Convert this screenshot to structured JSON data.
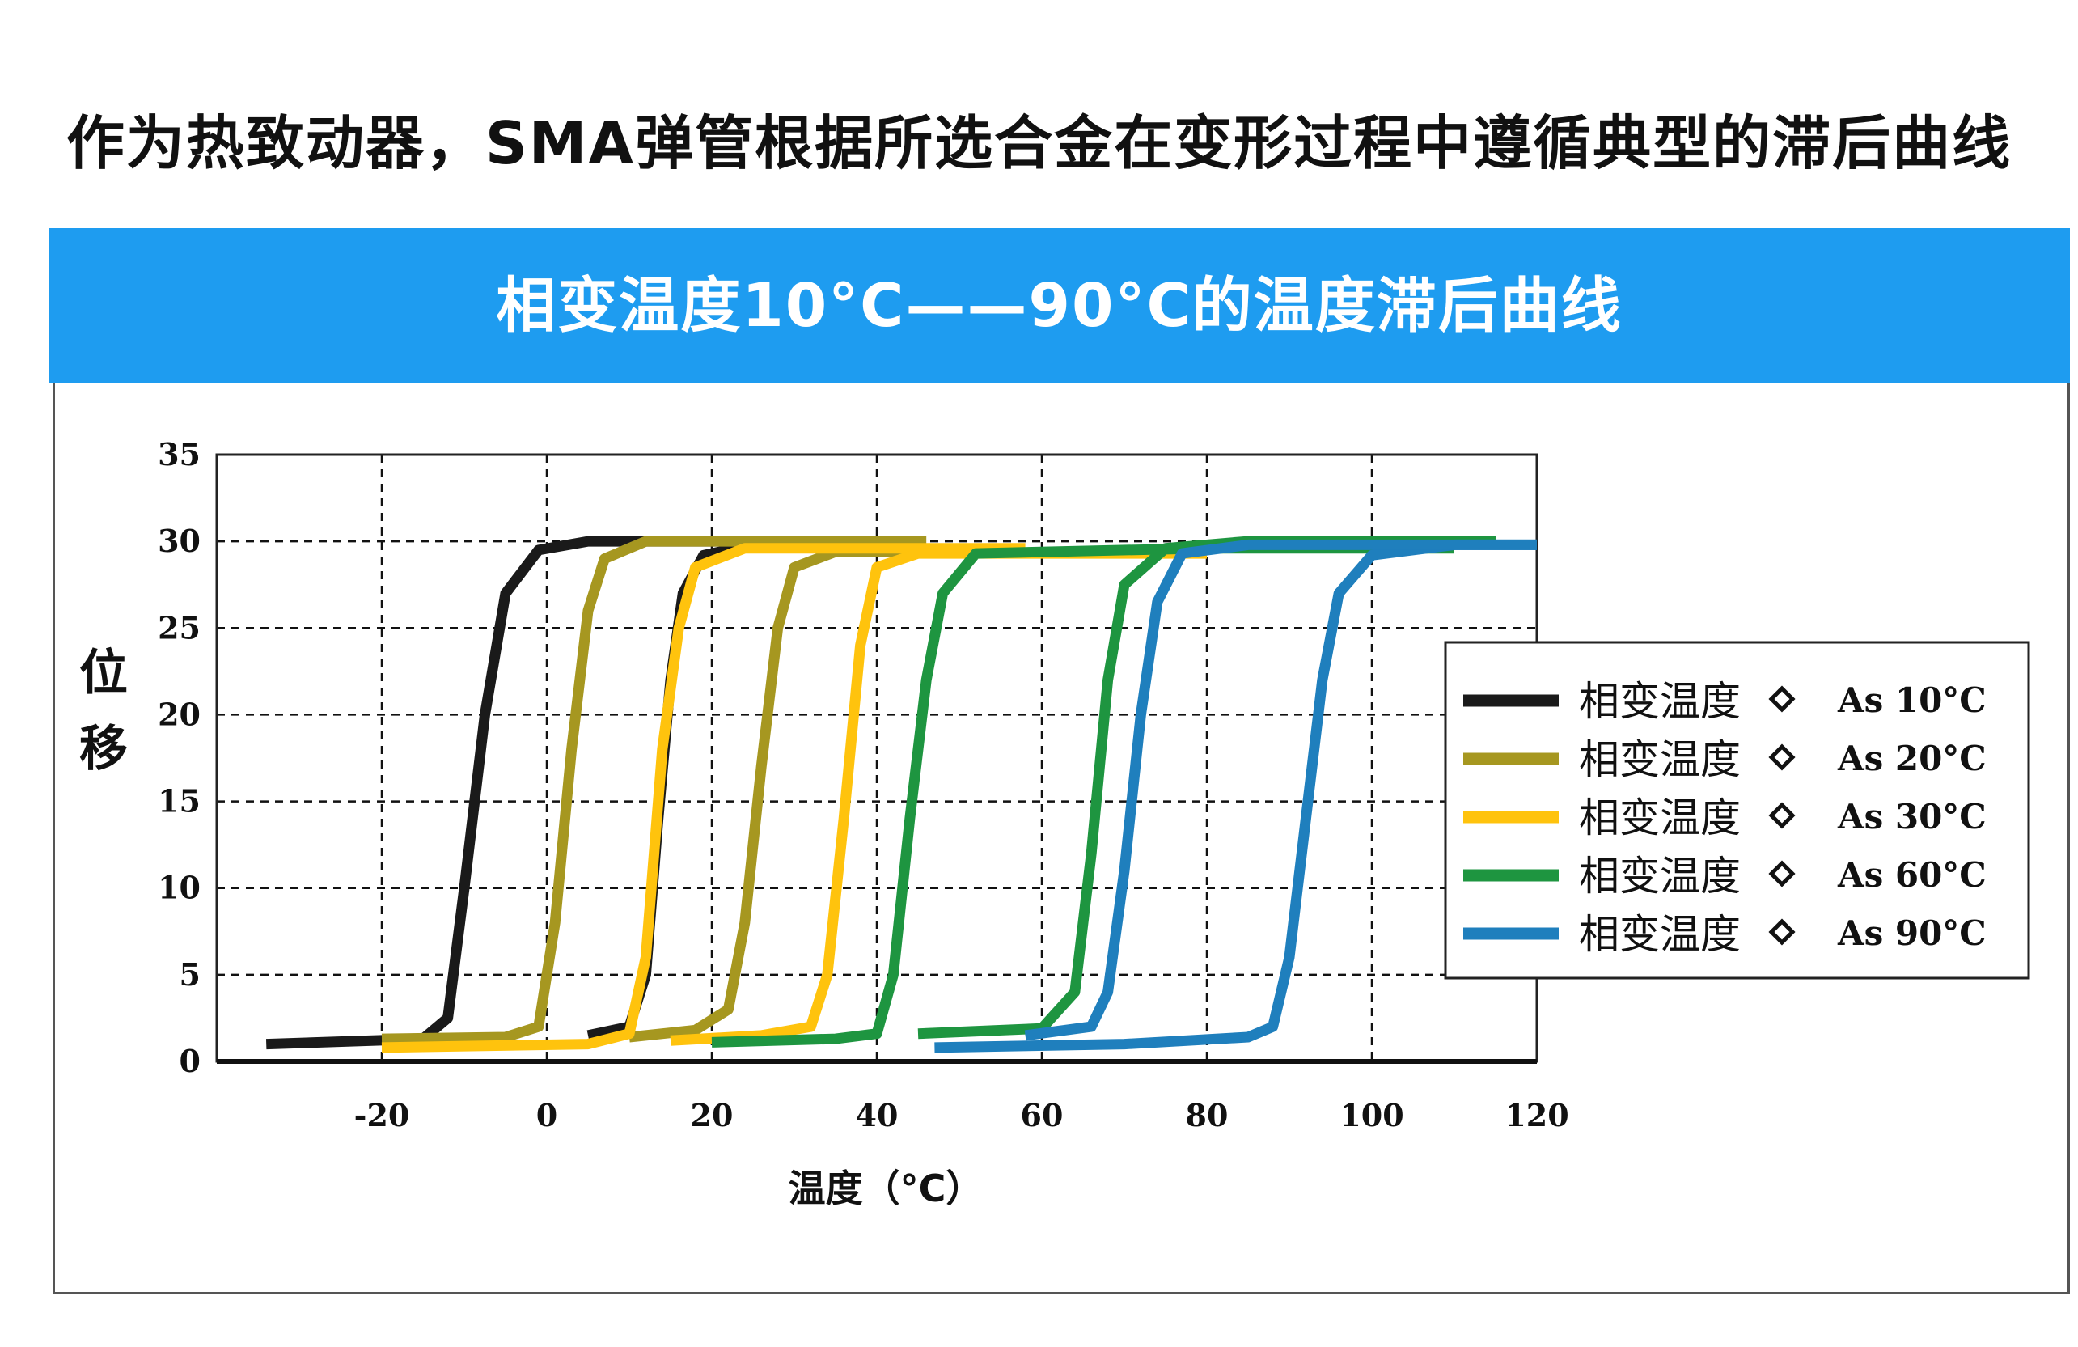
{
  "page": {
    "heading": "作为热致动器，SMA弹管根据所选合金在变形过程中遵循典型的滞后曲线",
    "banner_title": "相变温度10°C——90°C的温度滞后曲线",
    "banner_color": "#1e9cf0"
  },
  "chart_data": {
    "type": "line",
    "title": "相变温度10°C——90°C的温度滞后曲线",
    "xlabel": "温度（°C）",
    "ylabel": "位移",
    "xlim": [
      -40,
      120
    ],
    "ylim": [
      0,
      35
    ],
    "x_ticks": [
      "-20",
      "0",
      "20",
      "40",
      "60",
      "80",
      "100",
      "120"
    ],
    "x_tick_values": [
      -20,
      0,
      20,
      40,
      60,
      80,
      100,
      120
    ],
    "y_ticks": [
      "0",
      "5",
      "10",
      "15",
      "20",
      "25",
      "30",
      "35"
    ],
    "y_tick_values": [
      0,
      5,
      10,
      15,
      20,
      25,
      30,
      35
    ],
    "grid": true,
    "legend_position": "right",
    "series": [
      {
        "name": "相变温度 ◆ As 10°C",
        "legend_label": "相变温度",
        "legend_as": "As 10°C",
        "color": "#1a1a1a",
        "heating": [
          [
            -34,
            1
          ],
          [
            -15,
            1.3
          ],
          [
            -12,
            2.5
          ],
          [
            -10,
            10
          ],
          [
            -7.5,
            20
          ],
          [
            -5,
            27
          ],
          [
            -1,
            29.5
          ],
          [
            5,
            30
          ],
          [
            20,
            30
          ],
          [
            36,
            30
          ]
        ],
        "cooling": [
          [
            40,
            29.8
          ],
          [
            25,
            29.8
          ],
          [
            19,
            29.2
          ],
          [
            16.5,
            27
          ],
          [
            15,
            22
          ],
          [
            13.5,
            14
          ],
          [
            12,
            5
          ],
          [
            10,
            2
          ],
          [
            5,
            1.5
          ]
        ]
      },
      {
        "name": "相变温度 ◆ As 20°C",
        "legend_label": "相变温度",
        "legend_as": "As 20°C",
        "color": "#a69720",
        "heating": [
          [
            -20,
            1.3
          ],
          [
            -5,
            1.4
          ],
          [
            -1,
            2
          ],
          [
            1,
            8
          ],
          [
            3,
            18
          ],
          [
            5,
            26
          ],
          [
            7,
            29
          ],
          [
            12,
            30
          ],
          [
            30,
            30
          ],
          [
            46,
            30
          ]
        ],
        "cooling": [
          [
            50,
            29.4
          ],
          [
            35,
            29.4
          ],
          [
            30,
            28.5
          ],
          [
            28,
            25
          ],
          [
            26,
            17
          ],
          [
            24,
            8
          ],
          [
            22,
            3
          ],
          [
            18,
            1.8
          ],
          [
            10,
            1.4
          ]
        ]
      },
      {
        "name": "相变温度 ◆ As 30°C",
        "legend_label": "相变温度",
        "legend_as": "As 30°C",
        "color": "#ffc30d",
        "heating": [
          [
            -20,
            0.8
          ],
          [
            5,
            1
          ],
          [
            10,
            1.6
          ],
          [
            12,
            6
          ],
          [
            14,
            18
          ],
          [
            16,
            25
          ],
          [
            18,
            28.5
          ],
          [
            24,
            29.6
          ],
          [
            40,
            29.6
          ],
          [
            58,
            29.6
          ]
        ],
        "cooling": [
          [
            80,
            29.3
          ],
          [
            45,
            29.3
          ],
          [
            40,
            28.5
          ],
          [
            38,
            24
          ],
          [
            36,
            14
          ],
          [
            34,
            5
          ],
          [
            32,
            2
          ],
          [
            26,
            1.5
          ],
          [
            15,
            1.2
          ]
        ]
      },
      {
        "name": "相变温度 ◆ As 60°C",
        "legend_label": "相变温度",
        "legend_as": "As 60°C",
        "color": "#1e9540",
        "heating": [
          [
            20,
            1.1
          ],
          [
            35,
            1.3
          ],
          [
            40,
            1.6
          ],
          [
            42,
            5
          ],
          [
            44,
            14
          ],
          [
            46,
            22
          ],
          [
            48,
            27
          ],
          [
            52,
            29.3
          ],
          [
            80,
            29.6
          ],
          [
            110,
            29.6
          ]
        ],
        "cooling": [
          [
            115,
            30
          ],
          [
            85,
            30
          ],
          [
            75,
            29.6
          ],
          [
            70,
            27.5
          ],
          [
            68,
            22
          ],
          [
            66,
            12
          ],
          [
            64,
            4
          ],
          [
            60,
            1.9
          ],
          [
            45,
            1.6
          ]
        ]
      },
      {
        "name": "相变温度 ◆ As 90°C",
        "legend_label": "相变温度",
        "legend_as": "As 90°C",
        "color": "#1f7fbd",
        "heating": [
          [
            47,
            0.8
          ],
          [
            70,
            1
          ],
          [
            85,
            1.4
          ],
          [
            88,
            2
          ],
          [
            90,
            6
          ],
          [
            92,
            14
          ],
          [
            94,
            22
          ],
          [
            96,
            27
          ],
          [
            100,
            29.2
          ],
          [
            110,
            29.8
          ],
          [
            120,
            29.8
          ]
        ],
        "cooling": [
          [
            120,
            29.8
          ],
          [
            85,
            29.8
          ],
          [
            77,
            29.3
          ],
          [
            74,
            26.5
          ],
          [
            72,
            20
          ],
          [
            70,
            11
          ],
          [
            68,
            4
          ],
          [
            66,
            2
          ],
          [
            58,
            1.5
          ]
        ]
      }
    ]
  }
}
